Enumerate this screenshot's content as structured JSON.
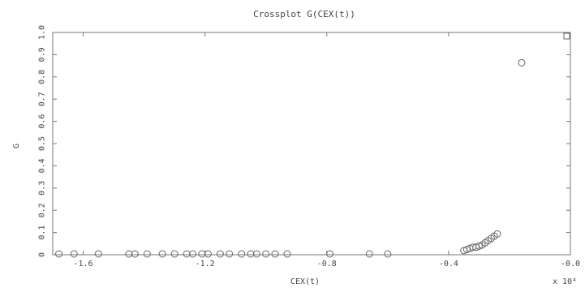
{
  "chart_data": {
    "type": "scatter",
    "title": "Crossplot G(CEX(t))",
    "xlabel": "CEX(t)",
    "ylabel": "G",
    "x_scale_label": "x 10⁴",
    "xlim": [
      -1.7,
      0.0
    ],
    "ylim": [
      0,
      1.0
    ],
    "xticks": [
      -1.6,
      -1.2,
      -0.8,
      -0.4,
      0.0
    ],
    "xtick_labels": [
      "-1.6",
      "-1.2",
      "-0.8",
      "-0.4",
      "-0.0"
    ],
    "yticks": [
      0,
      0.1,
      0.2,
      0.3,
      0.4,
      0.5,
      0.6,
      0.7,
      0.8,
      0.9,
      1.0
    ],
    "ytick_labels": [
      "0",
      "0.1",
      "0.2",
      "0.3",
      "0.4",
      "0.5",
      "0.6",
      "0.7",
      "0.8",
      "0.9",
      "1.0"
    ],
    "grid": false,
    "marker": "circle",
    "points": [
      {
        "x": -1.68,
        "y": 0.0
      },
      {
        "x": -1.63,
        "y": 0.0
      },
      {
        "x": -1.55,
        "y": 0.0
      },
      {
        "x": -1.45,
        "y": 0.0
      },
      {
        "x": -1.43,
        "y": 0.0
      },
      {
        "x": -1.39,
        "y": 0.0
      },
      {
        "x": -1.34,
        "y": 0.0
      },
      {
        "x": -1.3,
        "y": 0.0
      },
      {
        "x": -1.26,
        "y": 0.0
      },
      {
        "x": -1.24,
        "y": 0.0
      },
      {
        "x": -1.21,
        "y": 0.0
      },
      {
        "x": -1.19,
        "y": 0.0
      },
      {
        "x": -1.15,
        "y": 0.0
      },
      {
        "x": -1.12,
        "y": 0.0
      },
      {
        "x": -1.08,
        "y": 0.0
      },
      {
        "x": -1.05,
        "y": 0.0
      },
      {
        "x": -1.03,
        "y": 0.0
      },
      {
        "x": -1.0,
        "y": 0.0
      },
      {
        "x": -0.97,
        "y": 0.0
      },
      {
        "x": -0.93,
        "y": 0.0
      },
      {
        "x": -0.79,
        "y": 0.0
      },
      {
        "x": -0.66,
        "y": 0.0
      },
      {
        "x": -0.6,
        "y": 0.0
      },
      {
        "x": -0.35,
        "y": 0.015
      },
      {
        "x": -0.34,
        "y": 0.02
      },
      {
        "x": -0.33,
        "y": 0.025
      },
      {
        "x": -0.32,
        "y": 0.03
      },
      {
        "x": -0.31,
        "y": 0.03
      },
      {
        "x": -0.3,
        "y": 0.035
      },
      {
        "x": -0.29,
        "y": 0.04
      },
      {
        "x": -0.28,
        "y": 0.05
      },
      {
        "x": -0.27,
        "y": 0.06
      },
      {
        "x": -0.26,
        "y": 0.07
      },
      {
        "x": -0.25,
        "y": 0.08
      },
      {
        "x": -0.24,
        "y": 0.09
      },
      {
        "x": -0.16,
        "y": 0.86
      }
    ],
    "extra_marker": {
      "shape": "square",
      "x": 0.0,
      "y": 1.0
    }
  }
}
